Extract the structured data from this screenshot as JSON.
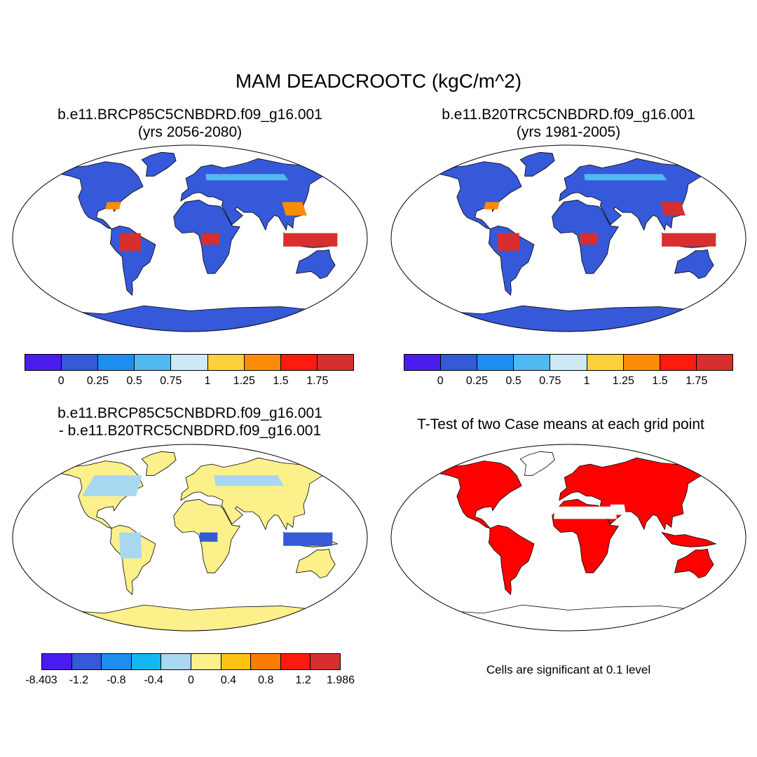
{
  "title": "MAM DEADCROOTC (kgC/m^2)",
  "panels": [
    {
      "line1": "b.e11.BRCP85C5CNBDRD.f09_g16.001",
      "line2": "(yrs 2056-2080)",
      "colorbar": {
        "colors": [
          "#4a1cf0",
          "#3659d9",
          "#1e8ef0",
          "#4fbaf0",
          "#cde9f5",
          "#fcd13a",
          "#fb8c05",
          "#ff1a10",
          "#d72f2f"
        ],
        "ticks": [
          "0",
          "0.25",
          "0.5",
          "0.75",
          "1",
          "1.25",
          "1.5",
          "1.75"
        ]
      }
    },
    {
      "line1": "b.e11.B20TRC5CNBDRD.f09_g16.001",
      "line2": "(yrs 1981-2005)",
      "colorbar": {
        "colors": [
          "#4a1cf0",
          "#3659d9",
          "#1e8ef0",
          "#4fbaf0",
          "#cde9f5",
          "#fcd13a",
          "#fb8c05",
          "#ff1a10",
          "#d72f2f"
        ],
        "ticks": [
          "0",
          "0.25",
          "0.5",
          "0.75",
          "1",
          "1.25",
          "1.5",
          "1.75"
        ]
      }
    },
    {
      "line1": "b.e11.BRCP85C5CNBDRD.f09_g16.001",
      "line2": "- b.e11.B20TRC5CNBDRD.f09_g16.001",
      "colorbar": {
        "colors": [
          "#4a1cf0",
          "#3659d9",
          "#1e8ef0",
          "#14b7f2",
          "#a8d7f2",
          "#fcf08a",
          "#fcc316",
          "#fa7c05",
          "#ff1a10",
          "#d72f2f"
        ],
        "ticks": [
          "-8.403",
          "-1.2",
          "-0.8",
          "-0.4",
          "0",
          "0.4",
          "0.8",
          "1.2",
          "1.986"
        ]
      }
    },
    {
      "line1": "T-Test of two Case means at each grid point",
      "note": "Cells are significant at 0.1 level"
    }
  ],
  "colors": {
    "ocean": "#ffffff",
    "land_low": "#3659d9",
    "land_high": "#d72f2f",
    "diff_land": "#fcf08a",
    "diff_neg": "#a8d7f2",
    "ttest_sig": "#ff0000",
    "coast": "#000000"
  }
}
